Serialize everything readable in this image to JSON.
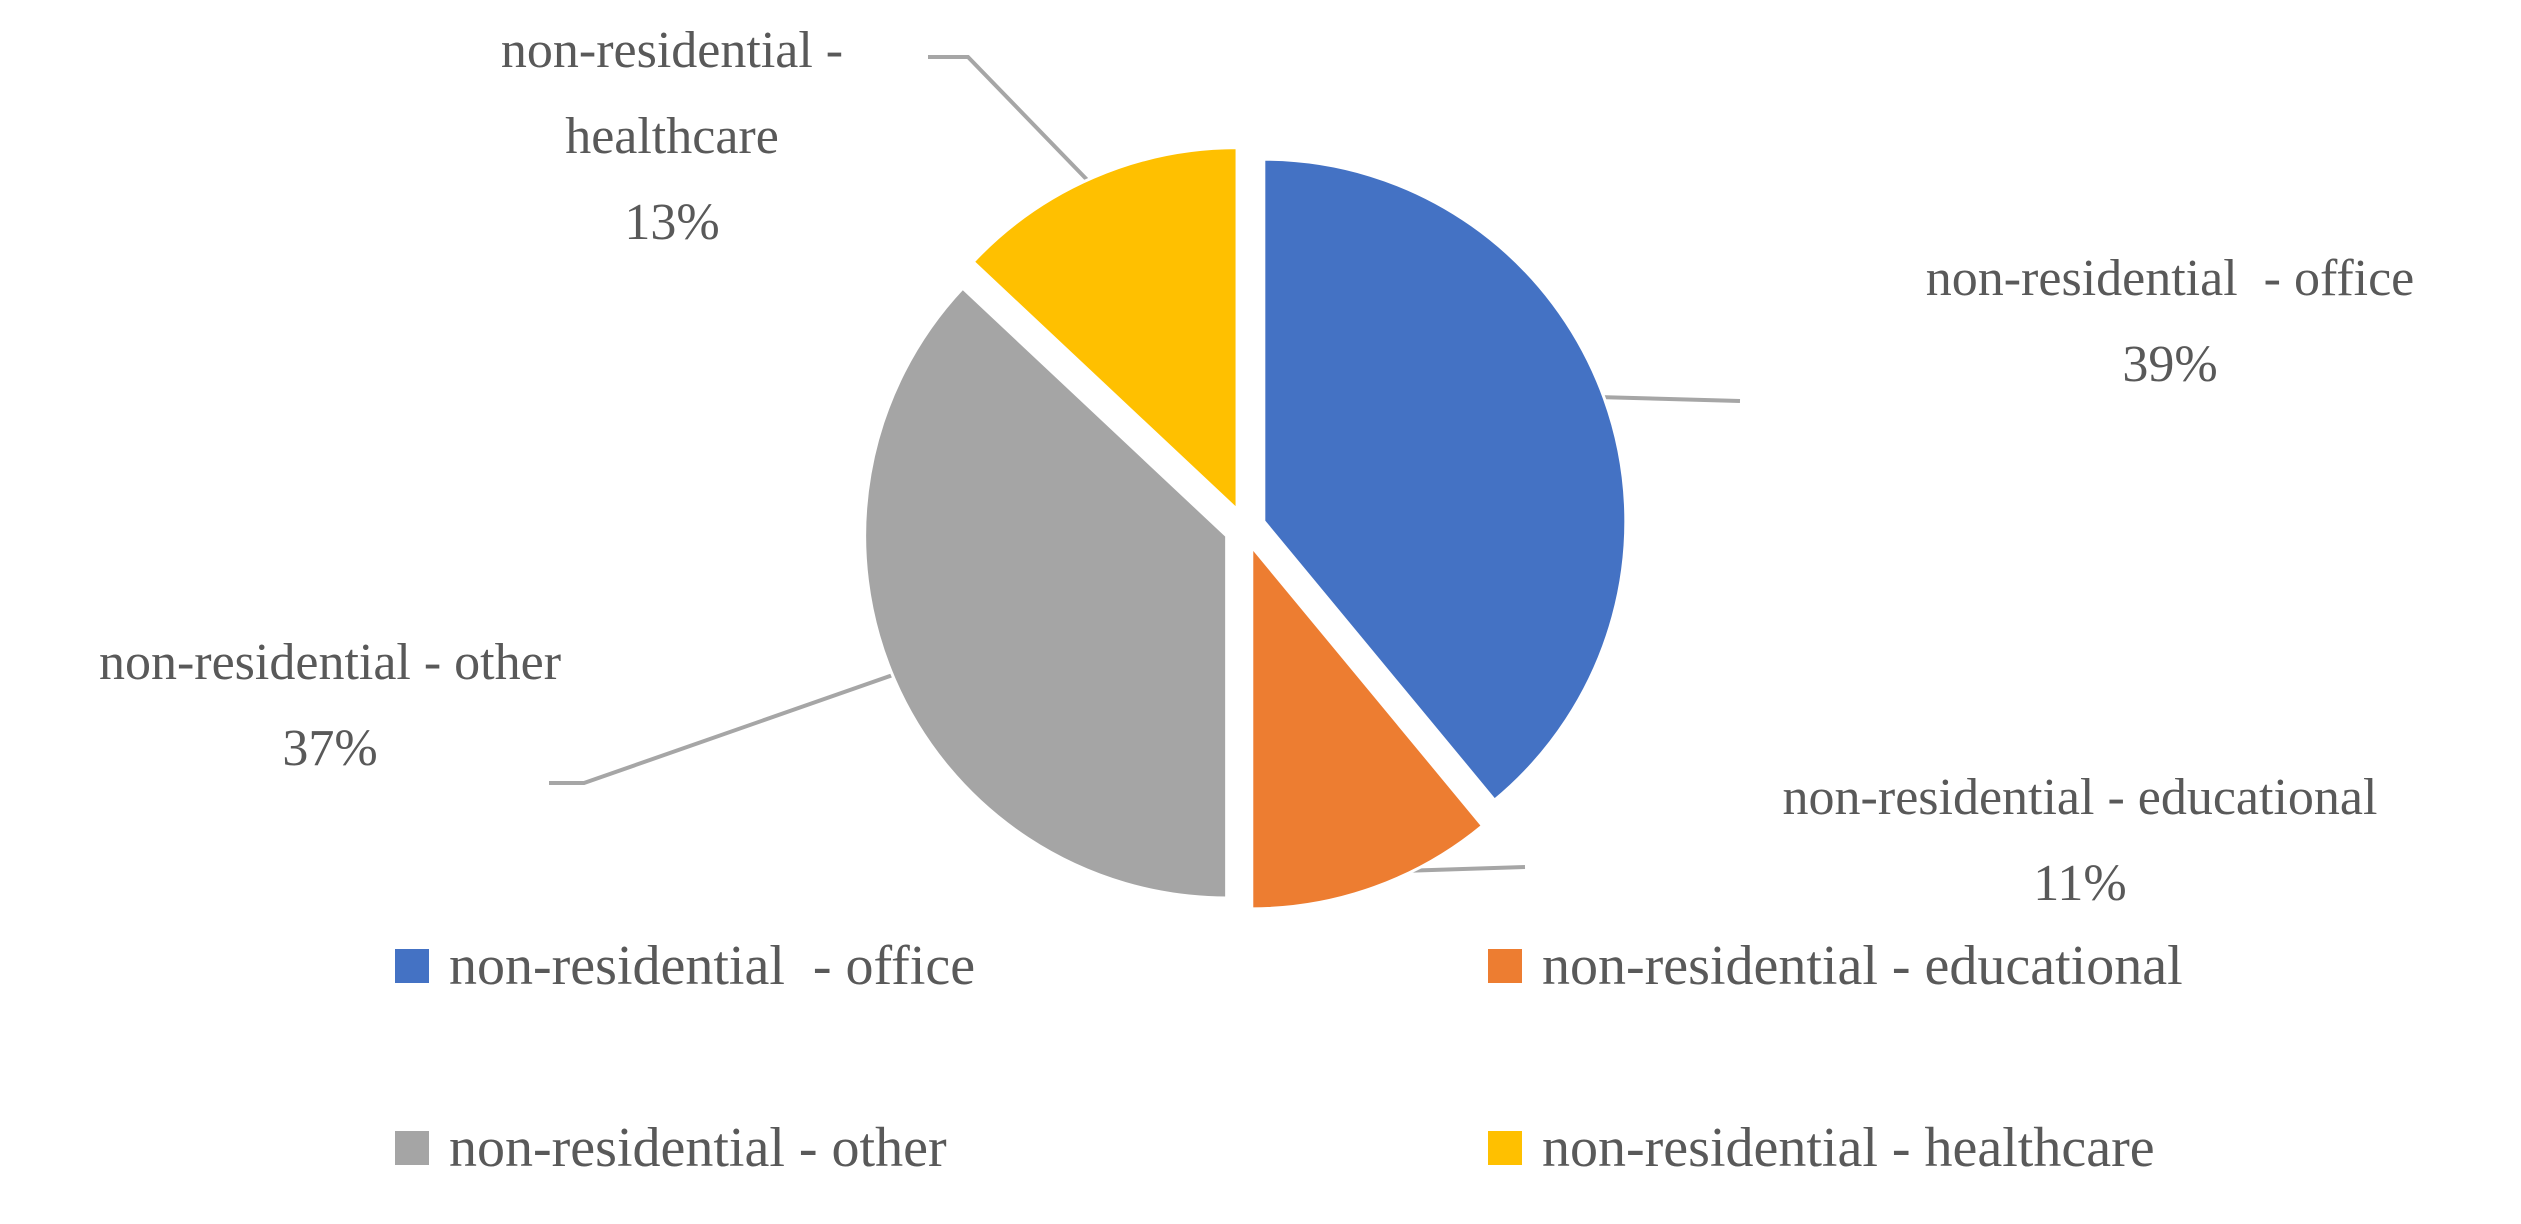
{
  "chart_data": {
    "type": "pie",
    "categories": [
      "non-residential  - office",
      "non-residential - educational",
      "non-residential - other",
      "non-residential - healthcare"
    ],
    "values": [
      39,
      11,
      37,
      13
    ],
    "value_labels": [
      "39%",
      "11%",
      "37%",
      "13%"
    ],
    "colors": [
      "#4472c4",
      "#ed7d31",
      "#a5a5a5",
      "#ffc000"
    ],
    "legend": "bottom"
  }
}
